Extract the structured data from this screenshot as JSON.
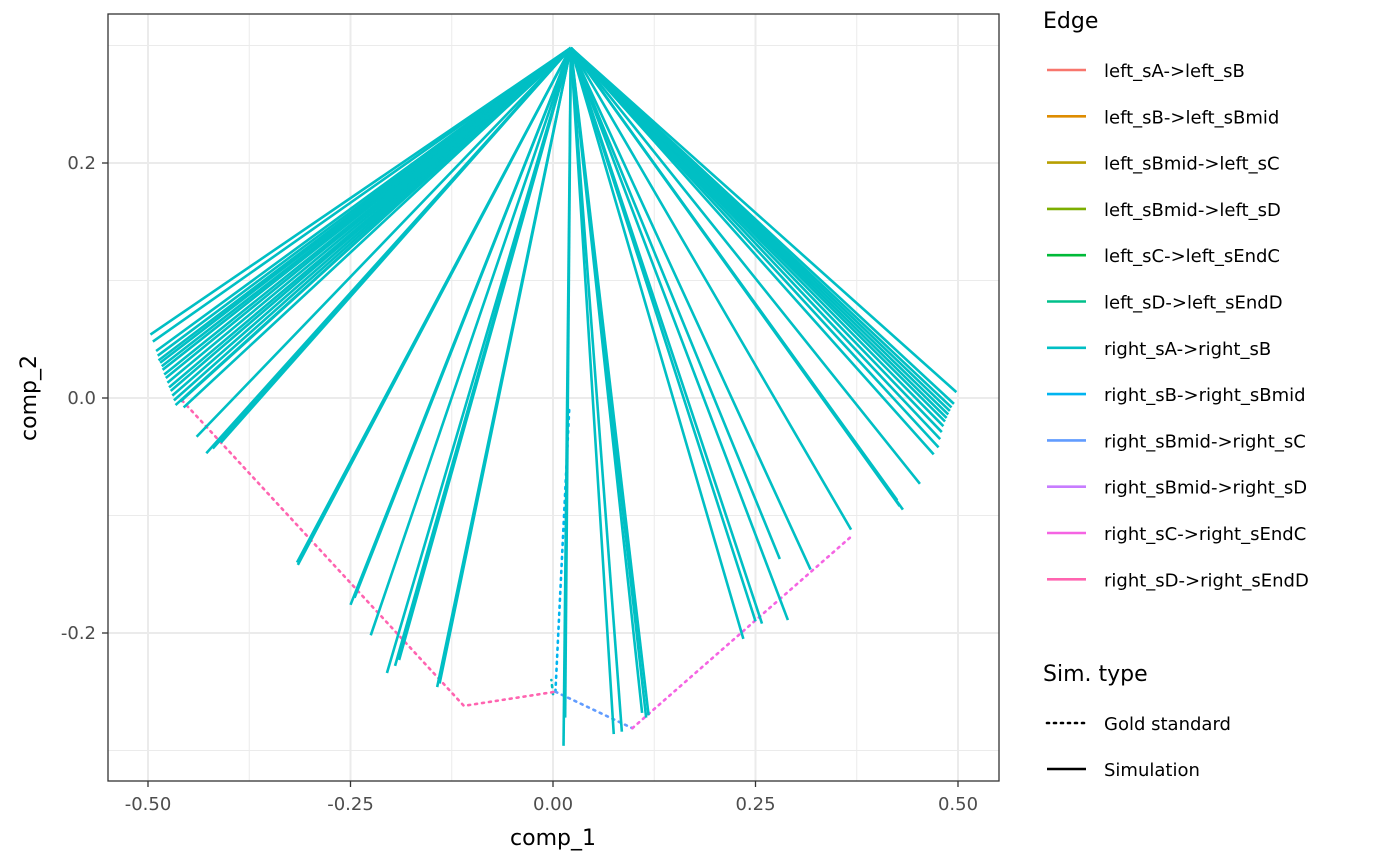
{
  "chart_data": {
    "type": "line",
    "xlabel": "comp_1",
    "ylabel": "comp_2",
    "xlim": [
      -0.5,
      0.5
    ],
    "ylim": [
      -0.3,
      0.3
    ],
    "x_ticks": [
      -0.5,
      -0.25,
      0.0,
      0.25,
      0.5
    ],
    "x_tick_labels": [
      "-0.50",
      "-0.25",
      "0.00",
      "0.25",
      "0.50"
    ],
    "y_ticks": [
      -0.2,
      0.0,
      0.2
    ],
    "y_tick_labels": [
      "-0.2",
      "0.0",
      "0.2"
    ],
    "grid": true,
    "legend_position": "right",
    "legend": {
      "edge_title": "Edge",
      "edges": [
        {
          "name": "left_sA->left_sB",
          "color": "#F8766D"
        },
        {
          "name": "left_sB->left_sBmid",
          "color": "#DE8C00"
        },
        {
          "name": "left_sBmid->left_sC",
          "color": "#B79F00"
        },
        {
          "name": "left_sBmid->left_sD",
          "color": "#7CAE00"
        },
        {
          "name": "left_sC->left_sEndC",
          "color": "#00BA38"
        },
        {
          "name": "left_sD->left_sEndD",
          "color": "#00C08B"
        },
        {
          "name": "right_sA->right_sB",
          "color": "#00BFC4"
        },
        {
          "name": "right_sB->right_sBmid",
          "color": "#00B4F0"
        },
        {
          "name": "right_sBmid->right_sC",
          "color": "#619CFF"
        },
        {
          "name": "right_sBmid->right_sD",
          "color": "#C77CFF"
        },
        {
          "name": "right_sC->right_sEndC",
          "color": "#F564E3"
        },
        {
          "name": "right_sD->right_sEndD",
          "color": "#FF64B0"
        }
      ],
      "simtype_title": "Sim. type",
      "simtypes": [
        {
          "name": "Gold standard",
          "linetype": "dotted"
        },
        {
          "name": "Simulation",
          "linetype": "solid"
        }
      ]
    },
    "simulation": {
      "color": "#00BFC4",
      "origin": [
        0.022,
        0.298
      ],
      "endpoints": [
        [
          -0.497,
          0.054
        ],
        [
          -0.494,
          0.048
        ],
        [
          -0.49,
          0.04
        ],
        [
          -0.488,
          0.036
        ],
        [
          -0.487,
          0.032
        ],
        [
          -0.485,
          0.03
        ],
        [
          -0.483,
          0.027
        ],
        [
          -0.482,
          0.024
        ],
        [
          -0.48,
          0.02
        ],
        [
          -0.478,
          0.017
        ],
        [
          -0.476,
          0.013
        ],
        [
          -0.474,
          0.009
        ],
        [
          -0.472,
          0.006
        ],
        [
          -0.47,
          0.002
        ],
        [
          -0.468,
          -0.002
        ],
        [
          -0.466,
          -0.006
        ],
        [
          -0.46,
          -0.003
        ],
        [
          -0.456,
          -0.008
        ],
        [
          -0.44,
          -0.033
        ],
        [
          -0.428,
          -0.047
        ],
        [
          -0.42,
          -0.043
        ],
        [
          -0.41,
          -0.038
        ],
        [
          -0.316,
          -0.14
        ],
        [
          -0.315,
          -0.142
        ],
        [
          -0.25,
          -0.176
        ],
        [
          -0.245,
          -0.17
        ],
        [
          -0.225,
          -0.202
        ],
        [
          -0.205,
          -0.234
        ],
        [
          -0.195,
          -0.228
        ],
        [
          -0.19,
          -0.223
        ],
        [
          -0.143,
          -0.246
        ],
        [
          -0.14,
          -0.243
        ],
        [
          0.013,
          -0.296
        ],
        [
          0.015,
          -0.272
        ],
        [
          0.075,
          -0.286
        ],
        [
          0.085,
          -0.284
        ],
        [
          0.11,
          -0.268
        ],
        [
          0.115,
          -0.272
        ],
        [
          0.118,
          -0.27
        ],
        [
          0.235,
          -0.205
        ],
        [
          0.25,
          -0.19
        ],
        [
          0.258,
          -0.192
        ],
        [
          0.28,
          -0.137
        ],
        [
          0.29,
          -0.189
        ],
        [
          0.318,
          -0.146
        ],
        [
          0.368,
          -0.112
        ],
        [
          0.425,
          -0.087
        ],
        [
          0.428,
          -0.092
        ],
        [
          0.432,
          -0.095
        ],
        [
          0.453,
          -0.073
        ],
        [
          0.47,
          -0.048
        ],
        [
          0.476,
          -0.042
        ],
        [
          0.478,
          -0.035
        ],
        [
          0.48,
          -0.029
        ],
        [
          0.482,
          -0.024
        ],
        [
          0.484,
          -0.02
        ],
        [
          0.486,
          -0.017
        ],
        [
          0.488,
          -0.014
        ],
        [
          0.49,
          -0.011
        ],
        [
          0.492,
          -0.008
        ],
        [
          0.495,
          -0.005
        ],
        [
          0.498,
          0.005
        ]
      ]
    },
    "gold_standard": [
      {
        "edge": "right_sA->right_sB",
        "color": "#00BFC4",
        "points": [
          [
            0.0,
            -0.252
          ],
          [
            -0.002,
            -0.24
          ]
        ]
      },
      {
        "edge": "right_sB->right_sBmid",
        "color": "#00B4F0",
        "points": [
          [
            0.003,
            -0.25
          ],
          [
            0.02,
            -0.01
          ]
        ]
      },
      {
        "edge": "right_sBmid->right_sC",
        "color": "#619CFF",
        "points": [
          [
            0.003,
            -0.25
          ],
          [
            0.098,
            -0.281
          ]
        ]
      },
      {
        "edge": "right_sC->right_sEndC",
        "color": "#F564E3",
        "points": [
          [
            0.098,
            -0.281
          ],
          [
            0.368,
            -0.118
          ]
        ]
      },
      {
        "edge": "right_sD->right_sEndD",
        "color": "#FF64B0",
        "points": [
          [
            -0.458,
            -0.002
          ],
          [
            -0.11,
            -0.262
          ],
          [
            0.003,
            -0.25
          ]
        ]
      }
    ]
  }
}
